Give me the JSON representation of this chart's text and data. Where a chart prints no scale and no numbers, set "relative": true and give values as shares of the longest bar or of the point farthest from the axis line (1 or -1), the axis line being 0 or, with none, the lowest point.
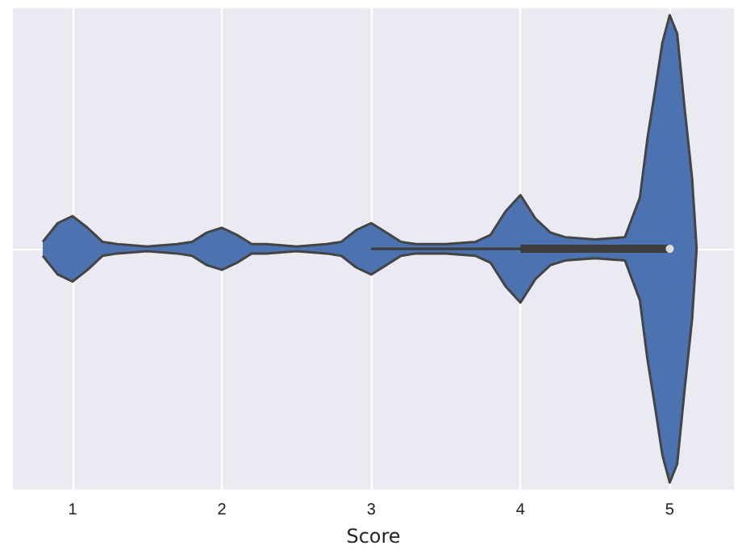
{
  "chart_data": {
    "type": "area",
    "relative": true,
    "xlabel": "Score",
    "xlim": [
      0.6,
      5.43
    ],
    "xticks": [
      1,
      2,
      3,
      4,
      5
    ],
    "grid": "x",
    "series": [
      {
        "color": "#4c72b0",
        "x": [
          0.8,
          0.85,
          0.9,
          1.0,
          1.1,
          1.2,
          1.3,
          1.5,
          1.7,
          1.8,
          1.9,
          2.0,
          2.1,
          2.2,
          2.3,
          2.5,
          2.7,
          2.8,
          2.9,
          3.0,
          3.1,
          3.2,
          3.3,
          3.5,
          3.7,
          3.8,
          3.9,
          4.0,
          4.1,
          4.2,
          4.3,
          4.5,
          4.7,
          4.8,
          4.85,
          4.9,
          4.95,
          5.0,
          5.05,
          5.1,
          5.15,
          5.18
        ],
        "values": [
          0.03,
          0.07,
          0.11,
          0.14,
          0.09,
          0.03,
          0.02,
          0.01,
          0.02,
          0.03,
          0.07,
          0.09,
          0.06,
          0.02,
          0.02,
          0.01,
          0.02,
          0.03,
          0.08,
          0.11,
          0.07,
          0.03,
          0.02,
          0.02,
          0.03,
          0.06,
          0.16,
          0.23,
          0.13,
          0.07,
          0.05,
          0.04,
          0.05,
          0.22,
          0.47,
          0.67,
          0.88,
          1.0,
          0.92,
          0.6,
          0.3,
          0.0
        ]
      },
      {
        "color": "#4c72b0",
        "x": [
          0.8,
          0.85,
          0.9,
          1.0,
          1.1,
          1.2,
          1.3,
          1.5,
          1.7,
          1.8,
          1.9,
          2.0,
          2.1,
          2.2,
          2.3,
          2.5,
          2.7,
          2.8,
          2.9,
          3.0,
          3.1,
          3.2,
          3.3,
          3.5,
          3.7,
          3.8,
          3.9,
          4.0,
          4.1,
          4.2,
          4.3,
          4.5,
          4.7,
          4.8,
          4.85,
          4.9,
          4.95,
          5.0,
          5.05,
          5.1,
          5.15,
          5.18
        ],
        "values": [
          -0.03,
          -0.07,
          -0.11,
          -0.14,
          -0.09,
          -0.03,
          -0.02,
          -0.01,
          -0.02,
          -0.03,
          -0.07,
          -0.09,
          -0.06,
          -0.02,
          -0.02,
          -0.01,
          -0.02,
          -0.03,
          -0.08,
          -0.11,
          -0.07,
          -0.03,
          -0.02,
          -0.02,
          -0.03,
          -0.06,
          -0.16,
          -0.23,
          -0.13,
          -0.07,
          -0.05,
          -0.04,
          -0.05,
          -0.22,
          -0.47,
          -0.67,
          -0.88,
          -1.0,
          -0.92,
          -0.6,
          -0.3,
          0.0
        ]
      },
      {
        "type": "line",
        "color": "#3d3d3d",
        "x": [
          3,
          5
        ],
        "values": [
          0,
          0
        ]
      },
      {
        "type": "line",
        "color": "#3d3d3d",
        "x": [
          4,
          5
        ],
        "values": [
          0,
          0
        ]
      },
      {
        "type": "scatter",
        "color": "#ffffff",
        "x": [
          5
        ],
        "values": [
          0
        ]
      }
    ]
  }
}
